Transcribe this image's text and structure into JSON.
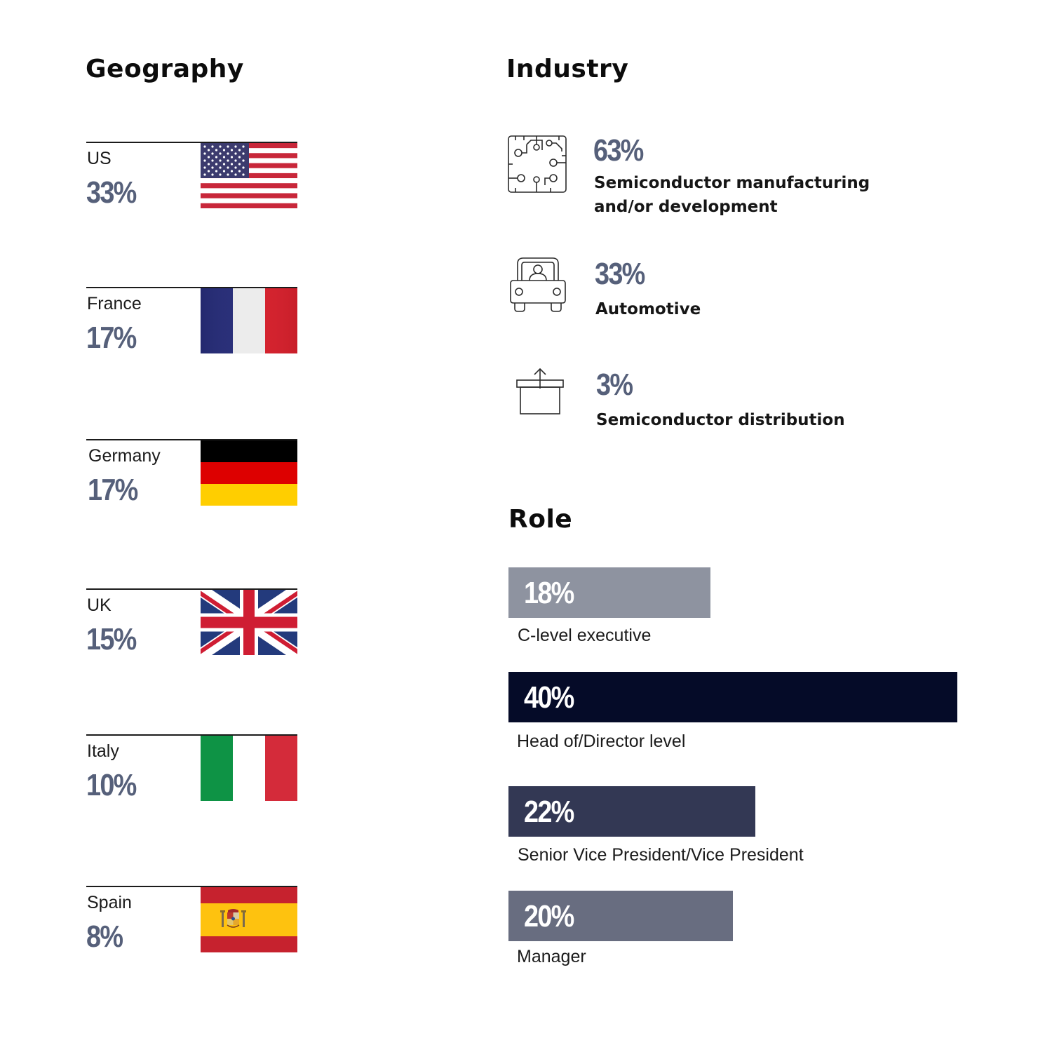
{
  "geography": {
    "title": "Geography",
    "items": [
      {
        "name": "US",
        "value": "33%"
      },
      {
        "name": "France",
        "value": "17%"
      },
      {
        "name": "Germany",
        "value": "17%"
      },
      {
        "name": "UK",
        "value": "15%"
      },
      {
        "name": "Italy",
        "value": "10%"
      },
      {
        "name": "Spain",
        "value": "8%"
      }
    ]
  },
  "industry": {
    "title": "Industry",
    "items": [
      {
        "value": "63%",
        "label_line1": "Semiconductor manufacturing",
        "label_line2": "and/or development",
        "icon": "circuit-chip-icon"
      },
      {
        "value": "33%",
        "label_line1": "Automotive",
        "icon": "car-driver-icon"
      },
      {
        "value": "3%",
        "label_line1": "Semiconductor distribution",
        "icon": "box-upload-icon"
      }
    ]
  },
  "role": {
    "title": "Role",
    "items": [
      {
        "value": "18%",
        "label": "C-level executive",
        "color": "#8e93a0"
      },
      {
        "value": "40%",
        "label": "Head of/Director level",
        "color": "#050b28"
      },
      {
        "value": "22%",
        "label": "Senior Vice President/Vice President",
        "color": "#333854"
      },
      {
        "value": "20%",
        "label": "Manager",
        "color": "#686d80"
      }
    ]
  },
  "chart_data": [
    {
      "type": "table",
      "title": "Geography",
      "categories": [
        "US",
        "France",
        "Germany",
        "UK",
        "Italy",
        "Spain"
      ],
      "values": [
        33,
        17,
        17,
        15,
        10,
        8
      ]
    },
    {
      "type": "table",
      "title": "Industry",
      "categories": [
        "Semiconductor manufacturing and/or development",
        "Automotive",
        "Semiconductor distribution"
      ],
      "values": [
        63,
        33,
        3
      ]
    },
    {
      "type": "bar",
      "title": "Role",
      "categories": [
        "C-level executive",
        "Head of/Director level",
        "Senior Vice President/Vice President",
        "Manager"
      ],
      "values": [
        18,
        40,
        22,
        20
      ]
    }
  ]
}
